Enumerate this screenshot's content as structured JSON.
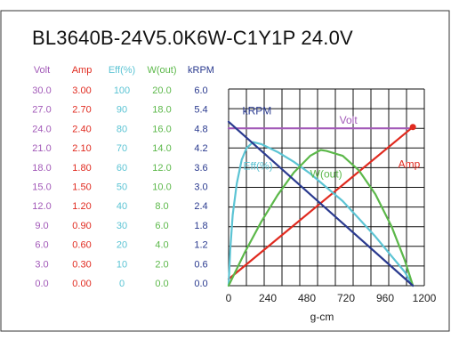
{
  "title": "BL3640B-24V5.0K6W-C1Y1P   24.0V",
  "colors": {
    "volt": "#a259b8",
    "amp": "#e02a1f",
    "eff": "#5cc4d4",
    "wout": "#5cb84a",
    "krpm": "#2a3a8f",
    "frame": "#333333",
    "grid": "#111111"
  },
  "scale_columns": [
    {
      "key": "volt",
      "header": "Volt",
      "values": [
        "30.0",
        "27.0",
        "24.0",
        "21.0",
        "18.0",
        "15.0",
        "12.0",
        "9.0",
        "6.0",
        "3.0",
        "0.0"
      ]
    },
    {
      "key": "amp",
      "header": "Amp",
      "values": [
        "3.00",
        "2.70",
        "2.40",
        "2.10",
        "1.80",
        "1.50",
        "1.20",
        "0.90",
        "0.60",
        "0.30",
        "0.00"
      ]
    },
    {
      "key": "eff",
      "header": "Eff(%)",
      "values": [
        "100",
        "90",
        "80",
        "70",
        "60",
        "50",
        "40",
        "30",
        "20",
        "10",
        "0"
      ]
    },
    {
      "key": "wout",
      "header": "W(out)",
      "values": [
        "20.0",
        "18.0",
        "16.0",
        "14.0",
        "12.0",
        "10.0",
        "8.0",
        "6.0",
        "4.0",
        "2.0",
        "0.0"
      ]
    },
    {
      "key": "krpm",
      "header": "kRPM",
      "values": [
        "6.0",
        "5.4",
        "4.8",
        "4.2",
        "3.6",
        "3.0",
        "2.4",
        "1.8",
        "1.2",
        "0.6",
        "0.0"
      ]
    }
  ],
  "chart_data": {
    "type": "line",
    "title": "BL3640B-24V5.0K6W-C1Y1P   24.0V",
    "xlabel": "g-cm",
    "x_ticks": [
      "0",
      "240",
      "480",
      "720",
      "960",
      "1200"
    ],
    "xlim": [
      0,
      1200
    ],
    "grid": true,
    "series": [
      {
        "name": "Volt",
        "key": "volt",
        "unit": "V",
        "ylim": [
          0,
          30
        ],
        "label_at": [
          680,
          24.7
        ],
        "points": [
          [
            0,
            24.0
          ],
          [
            1130,
            24.0
          ]
        ]
      },
      {
        "name": "Amp",
        "key": "amp",
        "unit": "A",
        "ylim": [
          0,
          3
        ],
        "label_at": [
          1040,
          1.8
        ],
        "points": [
          [
            0,
            0.1
          ],
          [
            1130,
            2.42
          ]
        ]
      },
      {
        "name": "Eff(%)",
        "key": "eff",
        "unit": "%",
        "ylim": [
          0,
          100
        ],
        "label_at": [
          90,
          59
        ],
        "points": [
          [
            0,
            0
          ],
          [
            10,
            18
          ],
          [
            25,
            36
          ],
          [
            50,
            52
          ],
          [
            80,
            64
          ],
          [
            110,
            70
          ],
          [
            150,
            73
          ],
          [
            200,
            72
          ],
          [
            300,
            68
          ],
          [
            400,
            63
          ],
          [
            500,
            57
          ],
          [
            600,
            50
          ],
          [
            700,
            43
          ],
          [
            800,
            34
          ],
          [
            900,
            25
          ],
          [
            1000,
            15
          ],
          [
            1080,
            7
          ],
          [
            1130,
            0
          ]
        ]
      },
      {
        "name": "W(out)",
        "key": "wout",
        "unit": "W",
        "ylim": [
          0,
          20
        ],
        "label_at": [
          500,
          11.0
        ],
        "points": [
          [
            0,
            0
          ],
          [
            100,
            3.4
          ],
          [
            200,
            6.5
          ],
          [
            300,
            9.2
          ],
          [
            400,
            11.5
          ],
          [
            500,
            13.2
          ],
          [
            565,
            13.8
          ],
          [
            600,
            13.7
          ],
          [
            700,
            13.2
          ],
          [
            800,
            11.7
          ],
          [
            900,
            9.3
          ],
          [
            1000,
            6.0
          ],
          [
            1080,
            2.6
          ],
          [
            1130,
            0
          ]
        ]
      },
      {
        "name": "kRPM",
        "key": "krpm",
        "unit": "kRPM",
        "ylim": [
          0,
          6
        ],
        "label_at": [
          85,
          5.22
        ],
        "points": [
          [
            0,
            5.0
          ],
          [
            1130,
            0
          ]
        ]
      }
    ]
  }
}
